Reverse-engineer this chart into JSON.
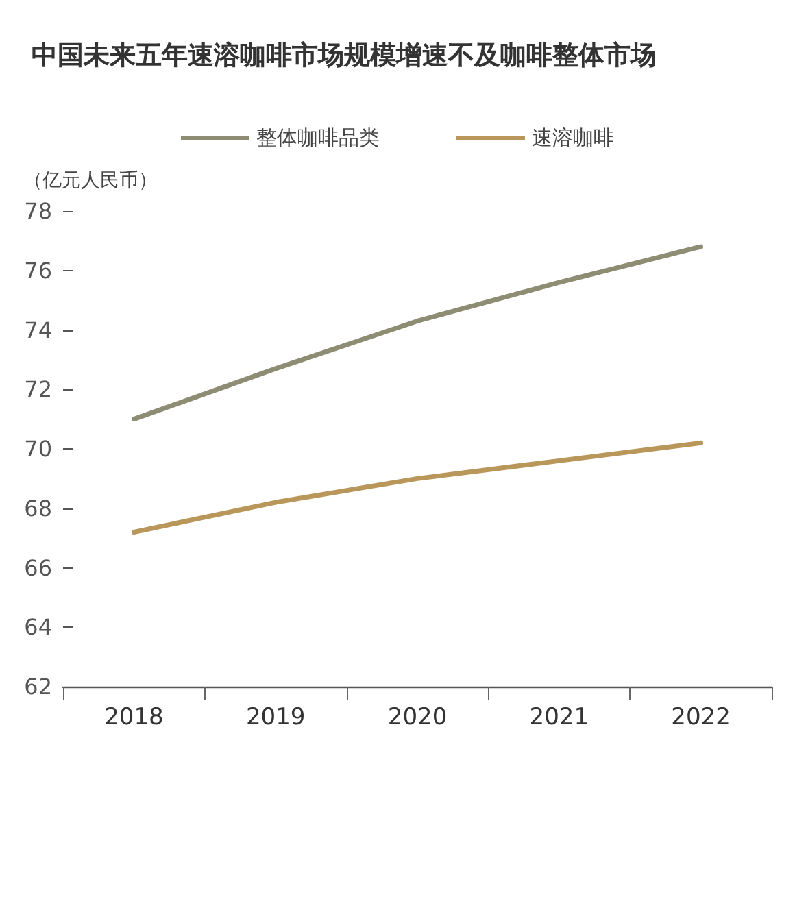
{
  "chart_data": {
    "type": "line",
    "title": "中国未来五年速溶咖啡市场规模增速不及咖啡整体市场",
    "ylabel": "（亿元人民币）",
    "categories": [
      "2018",
      "2019",
      "2020",
      "2021",
      "2022"
    ],
    "series": [
      {
        "name": "整体咖啡品类",
        "color": "#8e8c72",
        "values": [
          71.0,
          72.7,
          74.3,
          75.6,
          76.8
        ]
      },
      {
        "name": "速溶咖啡",
        "color": "#b9965a",
        "values": [
          67.2,
          68.2,
          69.0,
          69.6,
          70.2
        ]
      }
    ],
    "ylim": [
      62,
      78
    ],
    "yticks": [
      62,
      64,
      66,
      68,
      70,
      72,
      74,
      76,
      78
    ],
    "legend": "top",
    "marker": "none",
    "line_style": "solid"
  }
}
